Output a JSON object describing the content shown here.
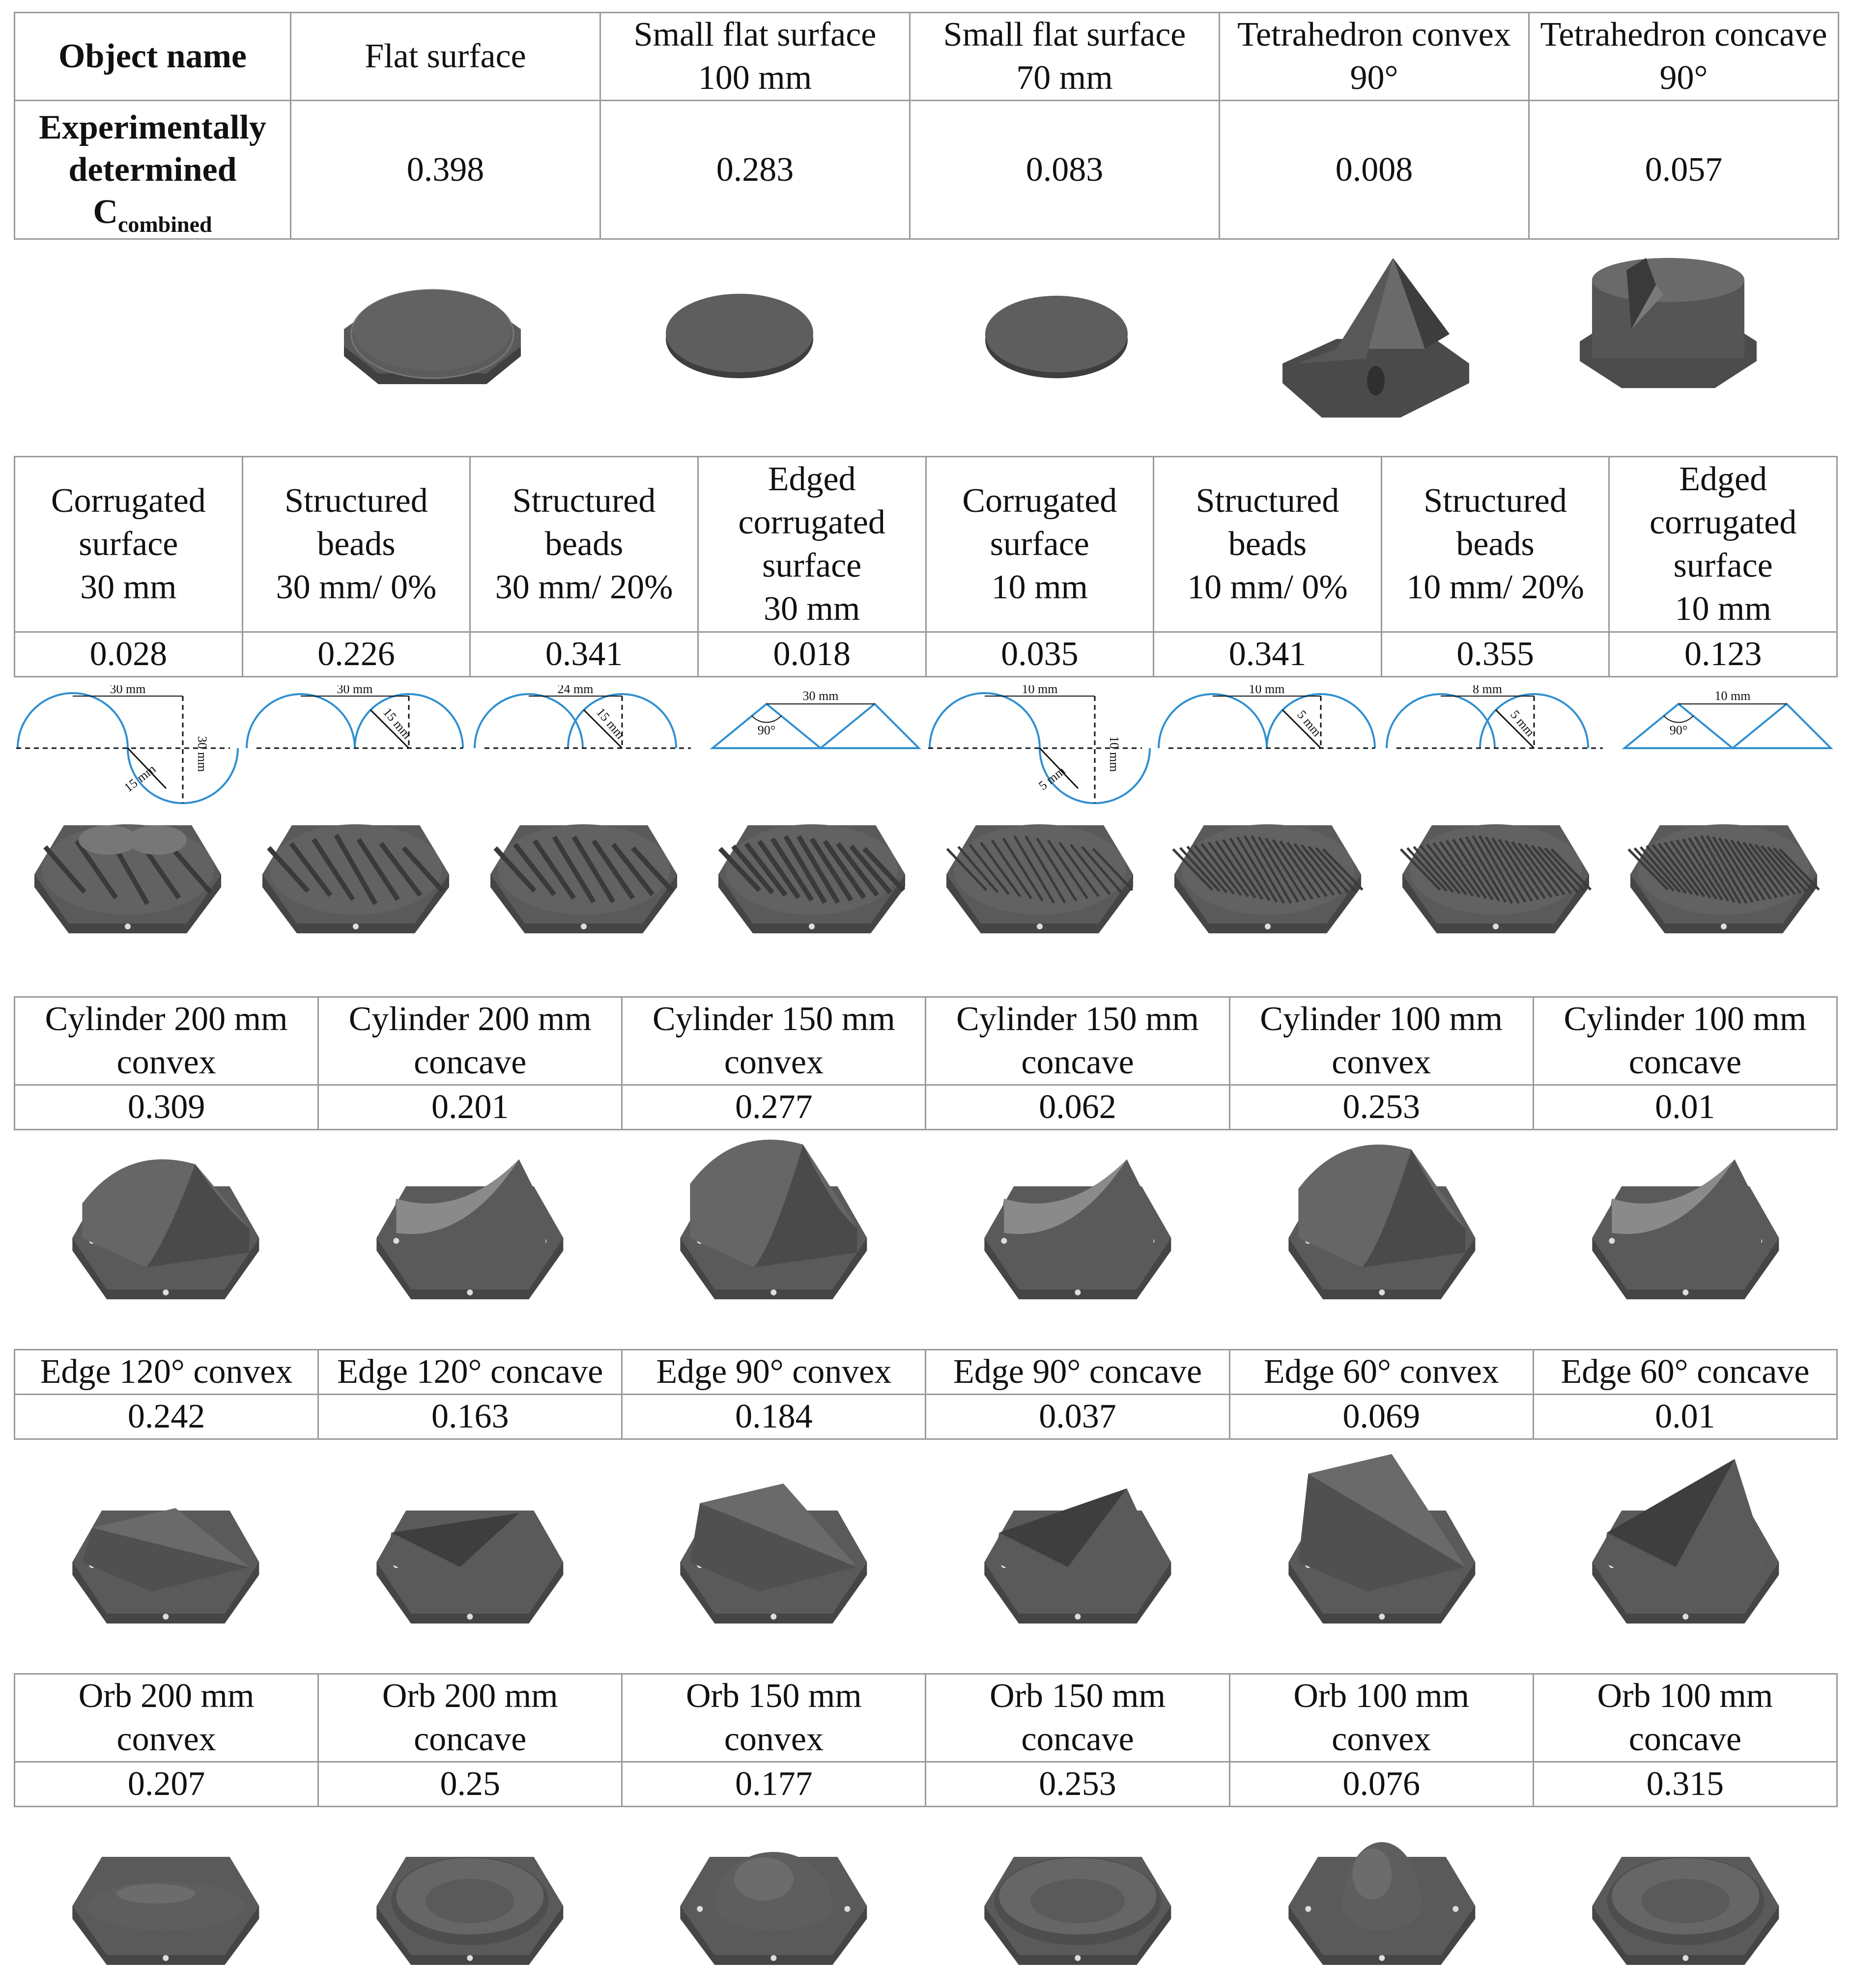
{
  "section1": {
    "header_label": "Object name",
    "value_label_lines": [
      "Experimentally",
      "determined",
      "C"
    ],
    "value_label_subscript": "combined",
    "columns": [
      {
        "name_lines": [
          "Flat surface"
        ],
        "value": "0.398",
        "icon": "flat-plate-render"
      },
      {
        "name_lines": [
          "Small flat surface",
          "100 mm"
        ],
        "value": "0.283",
        "icon": "small-disk-render"
      },
      {
        "name_lines": [
          "Small flat surface",
          "70 mm"
        ],
        "value": "0.083",
        "icon": "small-disk-render"
      },
      {
        "name_lines": [
          "Tetrahedron convex",
          "90°"
        ],
        "value": "0.008",
        "icon": "tetrahedron-convex-render"
      },
      {
        "name_lines": [
          "Tetrahedron concave",
          "90°"
        ],
        "value": "0.057",
        "icon": "tetrahedron-concave-render"
      }
    ]
  },
  "section2": {
    "columns": [
      {
        "name_lines": [
          "Corrugated",
          "surface",
          "30 mm"
        ],
        "value": "0.028",
        "diagram": {
          "kind": "corrugated",
          "dims": [
            "30 mm",
            "15 mm",
            "30 mm"
          ]
        }
      },
      {
        "name_lines": [
          "Structured",
          "beads",
          "30 mm/ 0%"
        ],
        "value": "0.226",
        "diagram": {
          "kind": "beads",
          "dims": [
            "30 mm",
            "15 mm"
          ]
        }
      },
      {
        "name_lines": [
          "Structured",
          "beads",
          "30 mm/ 20%"
        ],
        "value": "0.341",
        "diagram": {
          "kind": "beads-overlap",
          "dims": [
            "24 mm",
            "15 mm"
          ]
        }
      },
      {
        "name_lines": [
          "Edged",
          "corrugated",
          "surface",
          "30 mm"
        ],
        "value": "0.018",
        "diagram": {
          "kind": "edged",
          "dims": [
            "30 mm",
            "90°"
          ]
        }
      },
      {
        "name_lines": [
          "Corrugated",
          "surface",
          "10 mm"
        ],
        "value": "0.035",
        "diagram": {
          "kind": "corrugated",
          "dims": [
            "10 mm",
            "5 mm",
            "10 mm"
          ]
        }
      },
      {
        "name_lines": [
          "Structured",
          "beads",
          "10 mm/ 0%"
        ],
        "value": "0.341",
        "diagram": {
          "kind": "beads",
          "dims": [
            "10 mm",
            "5 mm"
          ]
        }
      },
      {
        "name_lines": [
          "Structured",
          "beads",
          "10 mm/ 20%"
        ],
        "value": "0.355",
        "diagram": {
          "kind": "beads-overlap",
          "dims": [
            "8 mm",
            "5 mm"
          ]
        }
      },
      {
        "name_lines": [
          "Edged",
          "corrugated",
          "surface",
          "10 mm"
        ],
        "value": "0.123",
        "diagram": {
          "kind": "edged",
          "dims": [
            "10 mm",
            "90°"
          ]
        }
      }
    ]
  },
  "section3": {
    "columns": [
      {
        "name_lines": [
          "Cylinder 200 mm",
          "convex"
        ],
        "value": "0.309"
      },
      {
        "name_lines": [
          "Cylinder 200 mm",
          "concave"
        ],
        "value": "0.201"
      },
      {
        "name_lines": [
          "Cylinder 150 mm",
          "convex"
        ],
        "value": "0.277"
      },
      {
        "name_lines": [
          "Cylinder 150 mm",
          "concave"
        ],
        "value": "0.062"
      },
      {
        "name_lines": [
          "Cylinder 100 mm",
          "convex"
        ],
        "value": "0.253"
      },
      {
        "name_lines": [
          "Cylinder 100 mm",
          "concave"
        ],
        "value": "0.01"
      }
    ]
  },
  "section4": {
    "columns": [
      {
        "name_lines": [
          "Edge 120° convex"
        ],
        "value": "0.242"
      },
      {
        "name_lines": [
          "Edge 120° concave"
        ],
        "value": "0.163"
      },
      {
        "name_lines": [
          "Edge 90° convex"
        ],
        "value": "0.184"
      },
      {
        "name_lines": [
          "Edge 90° concave"
        ],
        "value": "0.037"
      },
      {
        "name_lines": [
          "Edge 60° convex"
        ],
        "value": "0.069"
      },
      {
        "name_lines": [
          "Edge 60° concave"
        ],
        "value": "0.01"
      }
    ]
  },
  "section5": {
    "columns": [
      {
        "name_lines": [
          "Orb 200 mm",
          "convex"
        ],
        "value": "0.207"
      },
      {
        "name_lines": [
          "Orb 200 mm",
          "concave"
        ],
        "value": "0.25"
      },
      {
        "name_lines": [
          "Orb 150 mm",
          "convex"
        ],
        "value": "0.177"
      },
      {
        "name_lines": [
          "Orb 150 mm",
          "concave"
        ],
        "value": "0.253"
      },
      {
        "name_lines": [
          "Orb 100 mm",
          "convex"
        ],
        "value": "0.076"
      },
      {
        "name_lines": [
          "Orb 100 mm",
          "concave"
        ],
        "value": "0.315"
      }
    ]
  },
  "colors": {
    "render_gray": "#555555",
    "render_light": "#7a7a7a",
    "render_dark": "#3c3c3c",
    "diagram_blue": "#2f8fd0",
    "grid": "#9a9a9a"
  }
}
